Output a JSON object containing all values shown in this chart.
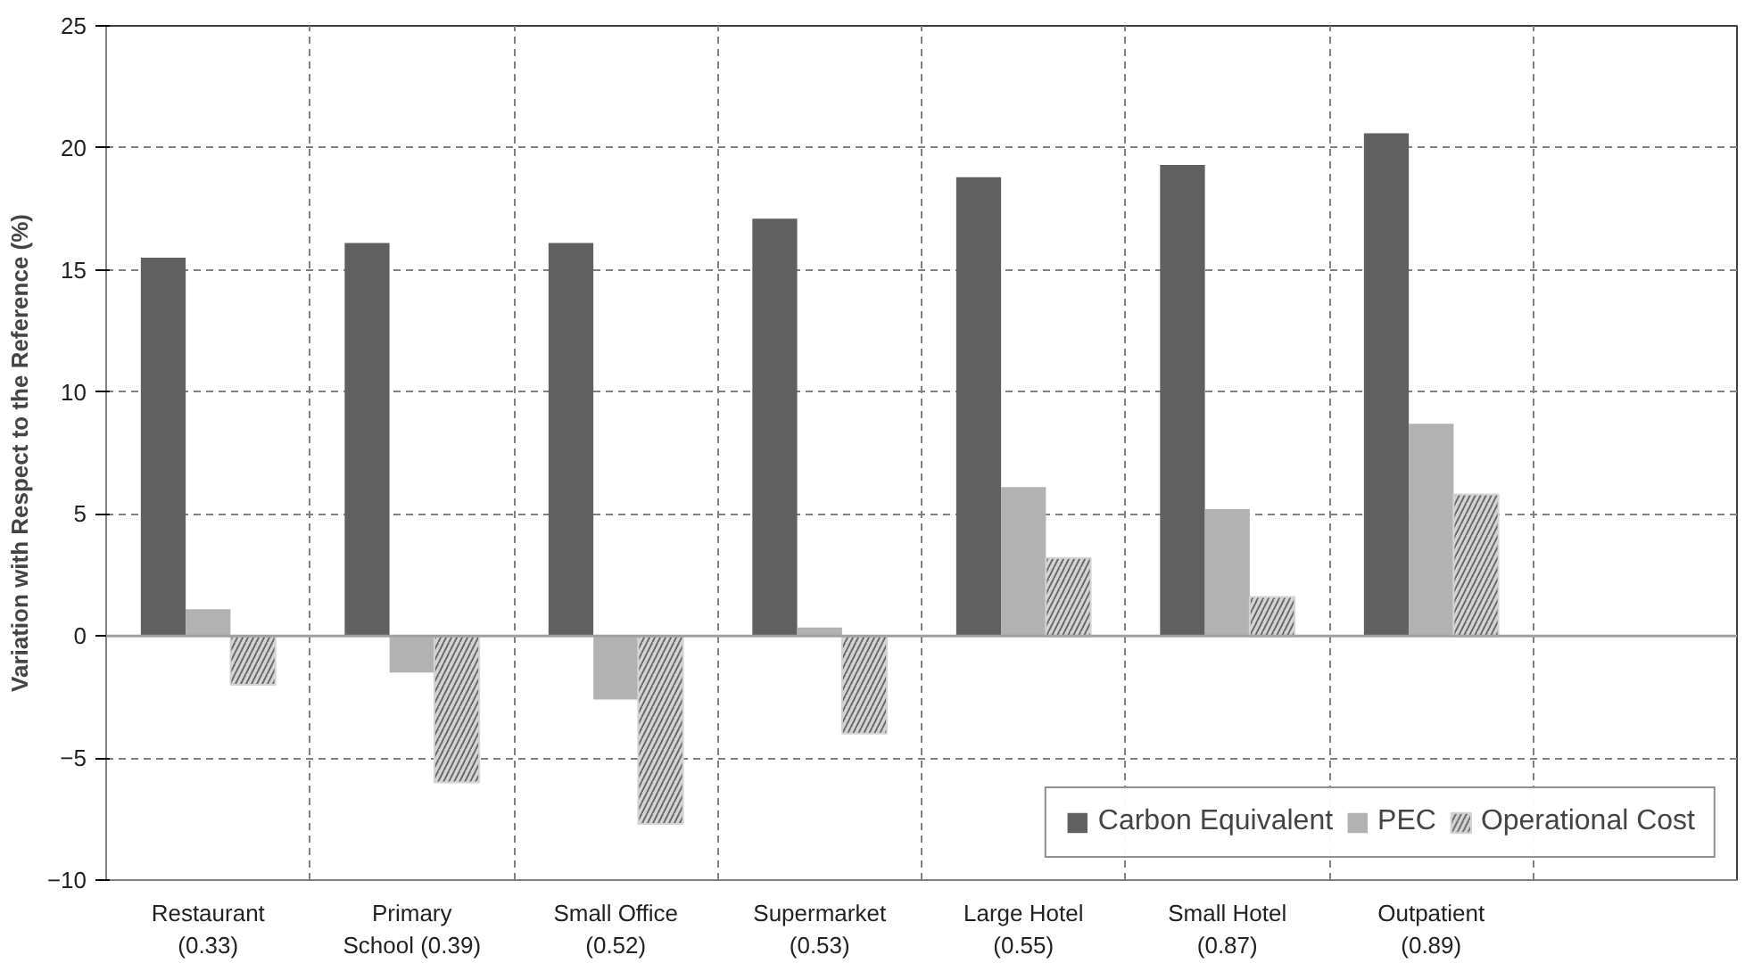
{
  "chart_data": {
    "type": "bar",
    "ylabel": "Variation with Respect to the Reference (%)",
    "categories": [
      "Restaurant\n(0.33)",
      "Primary\nSchool (0.39)",
      "Small Office\n(0.52)",
      "Supermarket\n(0.53)",
      "Large Hotel\n(0.55)",
      "Small Hotel\n(0.87)",
      "Outpatient\n(0.89)",
      null
    ],
    "series": [
      {
        "name": "Carbon Equivalent",
        "color": "#606060",
        "values": [
          15.5,
          16.1,
          16.1,
          17.1,
          18.8,
          19.3,
          20.6,
          null
        ]
      },
      {
        "name": "PEC",
        "color": "#b2b2b2",
        "values": [
          1.1,
          -1.5,
          -2.6,
          0.35,
          6.1,
          5.2,
          8.7,
          null
        ]
      },
      {
        "name": "Operational Cost",
        "color": "#d4d4d4",
        "values": [
          -2.0,
          -6.0,
          -7.7,
          -4.0,
          3.2,
          1.6,
          5.8,
          null
        ]
      }
    ],
    "ylim": [
      -10,
      25
    ],
    "yticks": [
      -10,
      -5,
      0,
      5,
      10,
      15,
      20,
      25
    ],
    "grid": true,
    "legend": "bottom right"
  }
}
